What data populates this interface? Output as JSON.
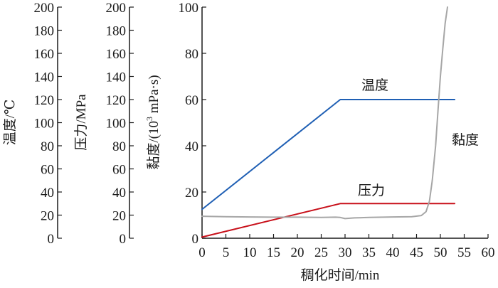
{
  "chart_data": {
    "type": "line",
    "xlabel": "稠化时间/min",
    "x_ticks": [
      0,
      5,
      10,
      15,
      20,
      25,
      30,
      35,
      40,
      45,
      50,
      55,
      60
    ],
    "xlim": [
      0,
      60
    ],
    "grid": false,
    "legend": "none",
    "axes": [
      {
        "key": "temp",
        "label": "温度/℃",
        "ylim": [
          0,
          200
        ],
        "ticks": [
          0,
          20,
          40,
          60,
          80,
          100,
          120,
          140,
          160,
          180,
          200
        ]
      },
      {
        "key": "pressure",
        "label": "压力/MPa",
        "ylim": [
          0,
          200
        ],
        "ticks": [
          0,
          20,
          40,
          60,
          80,
          100,
          120,
          140,
          160,
          180,
          200
        ]
      },
      {
        "key": "viscosity",
        "label_prefix": "黏度/(10",
        "label_sup": "3",
        "label_suffix": " mPa·s)",
        "ylim": [
          0,
          100
        ],
        "ticks": [
          0,
          20,
          40,
          60,
          80,
          100
        ]
      }
    ],
    "series": [
      {
        "name": "温度",
        "axis": "temp",
        "color": "#1f5fb4",
        "x": [
          0,
          29,
          53
        ],
        "y": [
          25,
          120,
          120
        ]
      },
      {
        "name": "压力",
        "axis": "pressure",
        "color": "#c8101a",
        "x": [
          0,
          29,
          53
        ],
        "y": [
          1,
          30,
          30
        ]
      },
      {
        "name": "黏度",
        "axis": "viscosity",
        "color": "#a6a6a6",
        "x": [
          0,
          5,
          10,
          15,
          20,
          25,
          28,
          29,
          30,
          32,
          35,
          40,
          44,
          46,
          47,
          47.7,
          48.3,
          49,
          49.5,
          50,
          50.5,
          51,
          51.5
        ],
        "y": [
          9.5,
          9.3,
          9.2,
          9.1,
          9.1,
          9.0,
          9.1,
          9.0,
          8.5,
          8.8,
          9.0,
          9.2,
          9.3,
          9.8,
          11.5,
          16,
          25,
          40,
          55,
          70,
          82,
          93,
          100
        ]
      }
    ]
  }
}
